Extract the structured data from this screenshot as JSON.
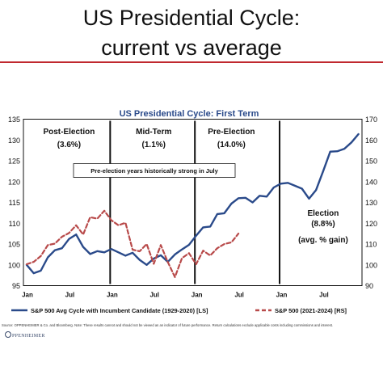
{
  "slide": {
    "title_line1": "US Presidential Cycle:",
    "title_line2": "current vs average",
    "footnote": "Source: OPPENHEIMER & Co. and Bloomberg. Note: These results cannot and should not be viewed as an indicator of future performance. Return calculations exclude applicable costs including commissions and interest.",
    "logo_text": "PPENHEIMER"
  },
  "chart_data": {
    "type": "line",
    "title": "US Presidential Cycle: First Term",
    "x_tick_labels": [
      "Jan",
      "Jul",
      "Jan",
      "Jul",
      "Jan",
      "Jul",
      "Jan",
      "Jul"
    ],
    "y_left": {
      "min": 95,
      "max": 135,
      "ticks": [
        95,
        100,
        105,
        110,
        115,
        120,
        125,
        130,
        135
      ]
    },
    "y_right": {
      "min": 90,
      "max": 170,
      "ticks": [
        90,
        100,
        110,
        120,
        130,
        140,
        150,
        160,
        170
      ]
    },
    "grid": false,
    "legend_position": "bottom",
    "phases": [
      {
        "name": "Post-Election",
        "value": "(3.6%)"
      },
      {
        "name": "Mid-Term",
        "value": "(1.1%)"
      },
      {
        "name": "Pre-Election",
        "value": "(14.0%)"
      },
      {
        "name": "Election",
        "value": "(8.8%)",
        "note": "(avg. % gain)"
      }
    ],
    "annotation": "Pre-election years historically strong in July",
    "series": [
      {
        "name": "S&P 500 Avg Cycle with Incumbent Candidate (1929-2020) [LS]",
        "axis": "left",
        "color": "#2a4a8a",
        "style": "solid",
        "values": [
          100.0,
          98.0,
          98.6,
          101.8,
          103.5,
          104.0,
          106.2,
          107.3,
          104.3,
          102.6,
          103.3,
          103.0,
          103.8,
          103.0,
          102.2,
          102.9,
          101.2,
          100.0,
          101.5,
          102.3,
          100.7,
          102.5,
          103.7,
          104.8,
          107.0,
          109.0,
          109.2,
          112.2,
          112.4,
          114.7,
          116.0,
          116.1,
          115.0,
          116.6,
          116.4,
          118.6,
          119.5,
          119.7,
          119.0,
          118.3,
          115.9,
          118.0,
          122.5,
          127.2,
          127.3,
          127.9,
          129.4,
          131.4
        ]
      },
      {
        "name": "S&P 500 (2021-2024) [RS]",
        "axis": "right",
        "color": "#b84a4a",
        "style": "dashed",
        "values": [
          100.3,
          101.4,
          104.2,
          109.5,
          110.2,
          113.5,
          115.3,
          119.0,
          114.6,
          122.9,
          122.2,
          126.0,
          121.4,
          119.0,
          120.2,
          107.3,
          106.5,
          110.0,
          100.5,
          109.5,
          101.3,
          94.1,
          103.2,
          105.6,
          100.3,
          106.8,
          104.5,
          108.0,
          110.0,
          110.8,
          115.0
        ]
      }
    ]
  }
}
